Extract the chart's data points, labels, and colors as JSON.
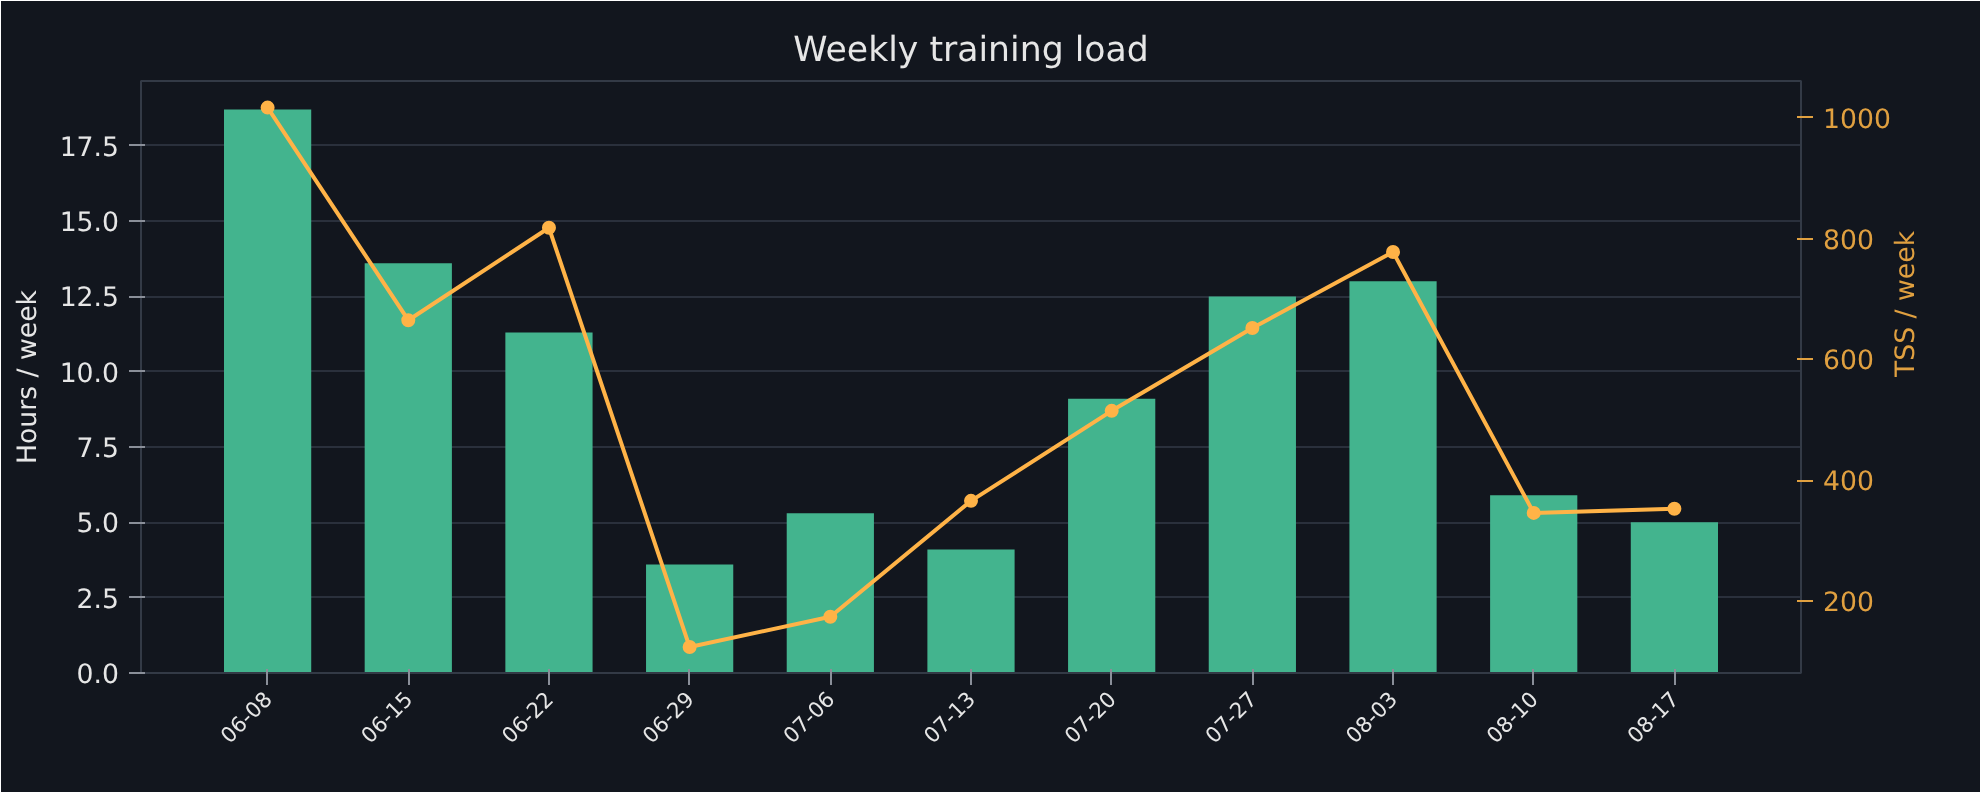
{
  "chart_data": {
    "type": "bar",
    "title": "Weekly training load",
    "ylabel": "Hours / week",
    "y2label": "TSS / week",
    "categories": [
      "06-08",
      "06-15",
      "06-22",
      "06-29",
      "07-06",
      "07-13",
      "07-20",
      "07-27",
      "08-03",
      "08-10",
      "08-17"
    ],
    "series": [
      {
        "color": "#43b48e",
        "values": [
          18.7,
          13.6,
          11.3,
          3.6,
          5.3,
          4.1,
          9.1,
          12.5,
          13.0,
          5.9,
          5.0
        ]
      },
      {
        "type": "line",
        "axis": "y2",
        "color": "#ffb347",
        "marker": "circle",
        "values": [
          1017,
          665,
          818,
          124,
          174,
          366,
          515,
          652,
          778,
          346,
          353
        ]
      }
    ],
    "ylim": [
      0,
      19.65
    ],
    "yticks": [
      {
        "value": 0,
        "label": "0.0"
      },
      {
        "value": 2.5,
        "label": "2.5"
      },
      {
        "value": 5,
        "label": "5.0"
      },
      {
        "value": 7.5,
        "label": "7.5"
      },
      {
        "value": 10,
        "label": "10.0"
      },
      {
        "value": 12.5,
        "label": "12.5"
      },
      {
        "value": 15,
        "label": "15.0"
      },
      {
        "value": 17.5,
        "label": "17.5"
      }
    ],
    "y2lim": [
      81,
      1061
    ],
    "y2ticks": [
      200,
      400,
      600,
      800,
      1000
    ],
    "grid": "y"
  }
}
